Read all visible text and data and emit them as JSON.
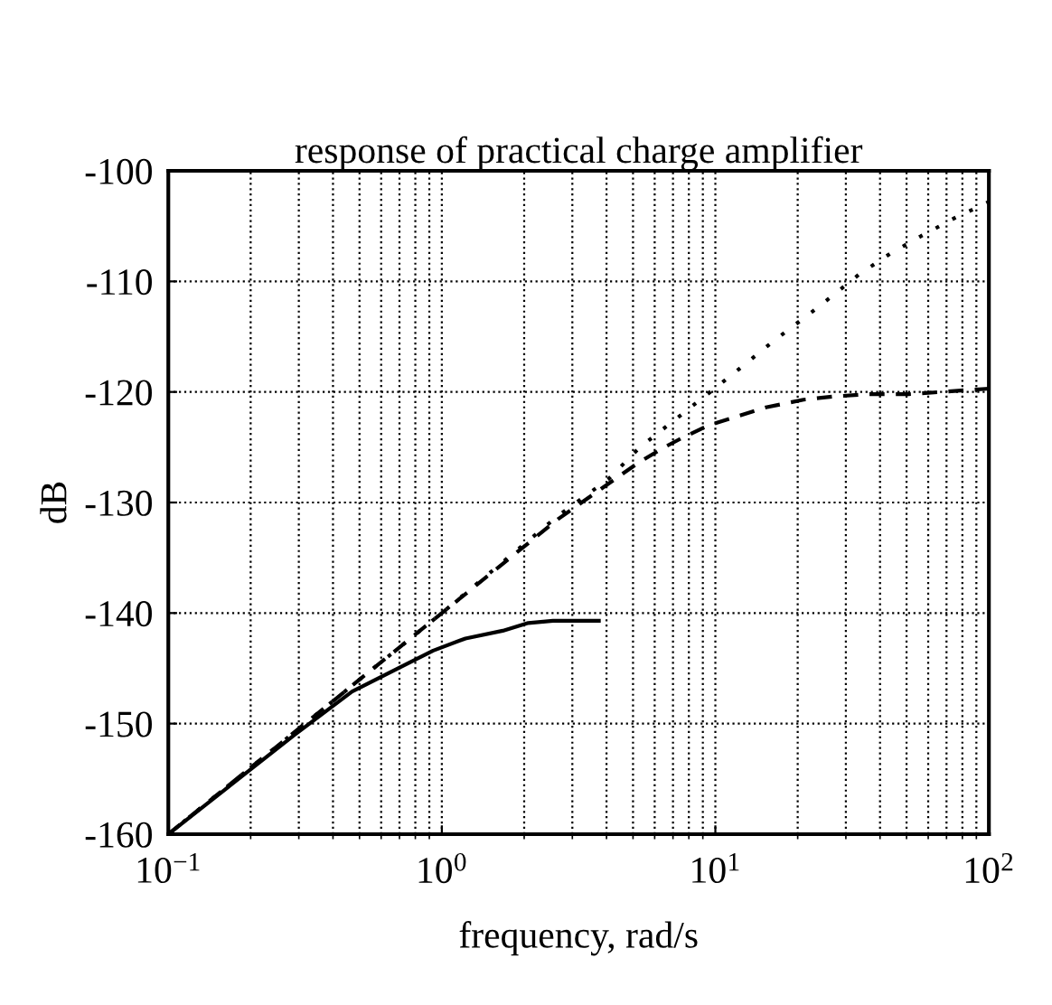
{
  "chart_data": {
    "type": "line",
    "title": "response of practical charge amplifier",
    "xlabel": "frequency, rad/s",
    "ylabel": "dB",
    "log": "x",
    "xlim": [
      0.1,
      100
    ],
    "ylim": [
      -160,
      -100
    ],
    "xticks": [
      {
        "value": 0.1,
        "label": "10$^{−1}$"
      },
      {
        "value": 1,
        "label": "10$^{0}$"
      },
      {
        "value": 10,
        "label": "10$^{1}$"
      },
      {
        "value": 100,
        "label": "10$^{2}$"
      }
    ],
    "yticks": [
      -160,
      -150,
      -140,
      -130,
      -120,
      -110,
      -100
    ],
    "grid": true,
    "marker": "none",
    "series": [
      {
        "color": "#000000",
        "line_style": "dotted",
        "x": [
          0.1,
          1,
          2.66,
          4.06,
          5.3,
          7.3,
          11.7,
          16.5,
          23.3,
          33.4,
          43.5,
          56.5,
          75.9,
          100
        ],
        "values": [
          -160,
          -140,
          -131.2,
          -127.9,
          -125,
          -122.3,
          -118.3,
          -115.3,
          -112.5,
          -109.4,
          -107.5,
          -105.9,
          -104.2,
          -102.8
        ]
      },
      {
        "color": "#000000",
        "line_style": "dashed",
        "x": [
          0.1,
          1,
          2.66,
          5.16,
          6.4,
          7.5,
          9.5,
          11.7,
          15.3,
          21,
          27.4,
          36.6,
          51,
          100
        ],
        "values": [
          -160,
          -140,
          -131.5,
          -126.5,
          -125.1,
          -124.2,
          -123,
          -122.3,
          -121.4,
          -120.7,
          -120.4,
          -120.2,
          -120.2,
          -119.7
        ]
      },
      {
        "color": "#000000",
        "line_style": "solid",
        "x": [
          0.1,
          0.29,
          0.47,
          0.68,
          0.93,
          1.22,
          1.67,
          2.07,
          2.55,
          3.16,
          3.75
        ],
        "values": [
          -160,
          -151,
          -147.1,
          -145.1,
          -143.4,
          -142.3,
          -141.6,
          -140.9,
          -140.7,
          -140.7,
          -140.7
        ]
      }
    ]
  }
}
